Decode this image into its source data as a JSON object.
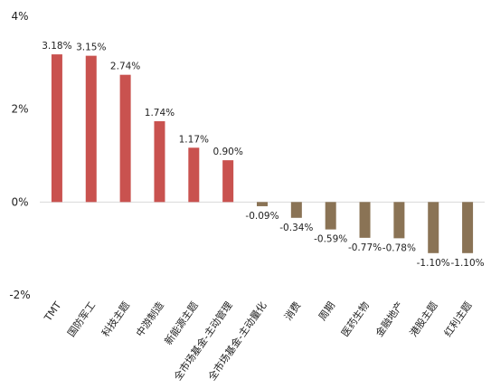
{
  "chart_data": {
    "type": "bar",
    "title": "",
    "xlabel": "",
    "ylabel": "",
    "ylim": [
      -2,
      4
    ],
    "yticks": [
      4,
      2,
      0,
      -2
    ],
    "ytick_labels": [
      "4%",
      "2%",
      "0%",
      "-2%"
    ],
    "grid": false,
    "categories": [
      "TMT",
      "国防军工",
      "科技主题",
      "中游制造",
      "新能源主题",
      "全市场基金-主动管理",
      "全市场基金-主动量化",
      "消费",
      "周期",
      "医药生物",
      "金融地产",
      "港股主题",
      "红利主题"
    ],
    "values": [
      3.18,
      3.15,
      2.74,
      1.74,
      1.17,
      0.9,
      -0.09,
      -0.34,
      -0.59,
      -0.77,
      -0.78,
      -1.1,
      -1.1
    ],
    "data_labels": [
      "3.18%",
      "3.15%",
      "2.74%",
      "1.74%",
      "1.17%",
      "0.90%",
      "-0.09%",
      "-0.34%",
      "-0.59%",
      "-0.77%",
      "-0.78%",
      "-1.10%",
      "-1.10%"
    ],
    "colors": {
      "positive": "#c9524f",
      "negative": "#8a7355",
      "axis": "#d9d9d9",
      "text": "#222222"
    }
  }
}
